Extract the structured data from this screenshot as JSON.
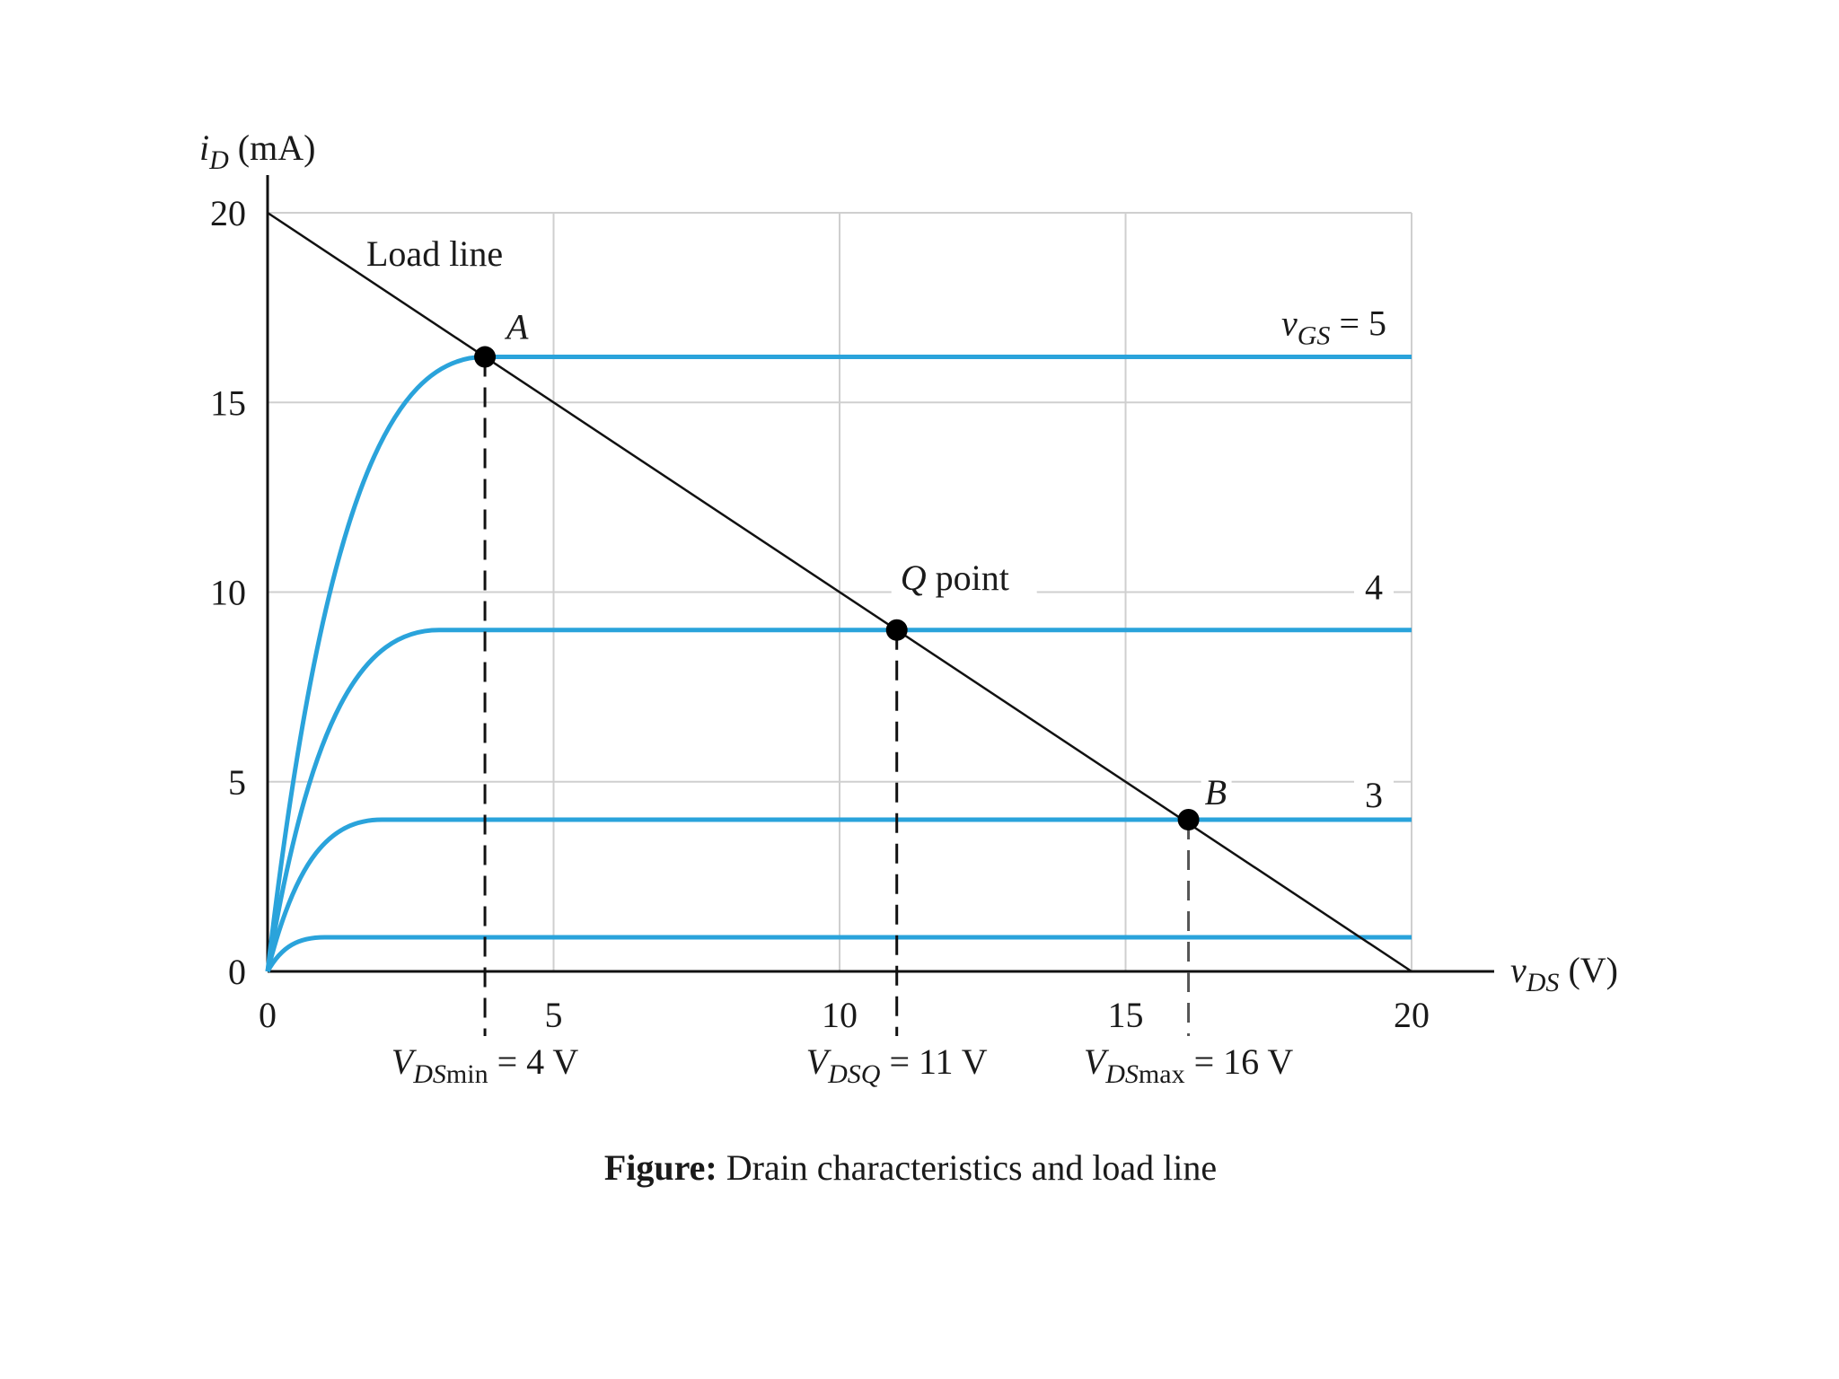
{
  "chart_data": {
    "type": "line",
    "caption": {
      "bold": "Figure:",
      "text": " Drain characteristics and load line"
    },
    "y_axis": {
      "symbol": "i",
      "subscript": "D",
      "unit": "(mA)",
      "ticks": [
        "0",
        "5",
        "10",
        "15",
        "20"
      ],
      "range": [
        0,
        20
      ]
    },
    "x_axis": {
      "symbol": "v",
      "subscript": "DS",
      "unit": "(V)",
      "ticks": [
        "0",
        "5",
        "10",
        "15",
        "20"
      ],
      "range": [
        0,
        20
      ]
    },
    "grid": true,
    "gridlines_y": [
      5,
      10,
      15,
      20
    ],
    "gridlines_x": [
      5,
      10,
      15,
      20
    ],
    "load_line": {
      "label": "Load line",
      "points": [
        [
          0,
          20
        ],
        [
          20,
          0
        ]
      ]
    },
    "curves": [
      {
        "saturation_mA": 16.2,
        "knee_V": 3.8,
        "label_parts": [
          "v",
          "GS",
          " = 5"
        ]
      },
      {
        "saturation_mA": 9.0,
        "knee_V": 3.0,
        "label_parts": [
          "4"
        ]
      },
      {
        "saturation_mA": 4.0,
        "knee_V": 2.0,
        "label_parts": [
          "3"
        ]
      },
      {
        "saturation_mA": 0.9,
        "knee_V": 1.0,
        "label_parts": []
      }
    ],
    "points": [
      {
        "label": "A",
        "x": 3.8,
        "y": 16.2
      },
      {
        "label": "Q point",
        "x": 11,
        "y": 9.0
      },
      {
        "label": "B",
        "x": 16.1,
        "y": 4.0
      }
    ],
    "annotations": [
      {
        "main": "V",
        "sub": "DSmin",
        "sub_plain": "min",
        "sub_ital": "DS",
        "rest": " = 4 V",
        "x": 3.8
      },
      {
        "main": "V",
        "sub_ital": "DSQ",
        "sub_plain": "",
        "rest": " = 11 V",
        "x": 11
      },
      {
        "main": "V",
        "sub_ital": "DS",
        "sub_plain": "max",
        "rest": " = 16 V",
        "x": 16.1
      }
    ],
    "colors": {
      "curve": "#2aa3db",
      "load_line": "#111111",
      "grid": "#cfcfcf",
      "point": "#000000"
    }
  }
}
